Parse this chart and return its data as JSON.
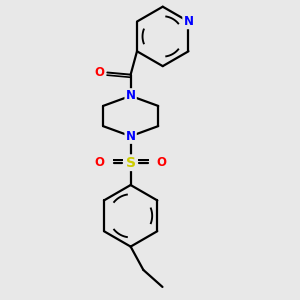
{
  "background_color": "#e8e8e8",
  "bond_color": "#000000",
  "lw": 1.6,
  "atom_colors": {
    "N": "#0000ff",
    "O": "#ff0000",
    "S": "#cccc00"
  },
  "fs": 8.5,
  "xlim": [
    0.55,
    2.45
  ],
  "ylim": [
    0.18,
    2.98
  ]
}
